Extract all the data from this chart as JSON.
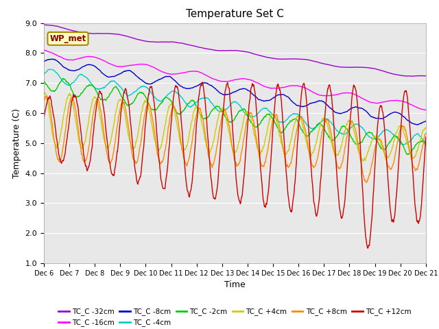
{
  "title": "Temperature Set C",
  "xlabel": "Time",
  "ylabel": "Temperature (C)",
  "ylim": [
    1.0,
    9.0
  ],
  "yticks": [
    1.0,
    2.0,
    3.0,
    4.0,
    5.0,
    6.0,
    7.0,
    8.0,
    9.0
  ],
  "n_days": 15,
  "x_tick_labels": [
    "Dec 6",
    "Dec 7",
    "Dec 8",
    "Dec 9",
    "Dec 10",
    "Dec 11",
    "Dec 12",
    "Dec 13",
    "Dec 14",
    "Dec 15",
    "Dec 16",
    "Dec 17",
    "Dec 18",
    "Dec 19",
    "Dec 20",
    "Dec 21"
  ],
  "series": [
    {
      "label": "TC_C -32cm",
      "color": "#9900CC"
    },
    {
      "label": "TC_C -16cm",
      "color": "#FF00FF"
    },
    {
      "label": "TC_C -8cm",
      "color": "#0000CC"
    },
    {
      "label": "TC_C -4cm",
      "color": "#00CCCC"
    },
    {
      "label": "TC_C -2cm",
      "color": "#00CC00"
    },
    {
      "label": "TC_C +4cm",
      "color": "#CCCC00"
    },
    {
      "label": "TC_C +8cm",
      "color": "#FF8800"
    },
    {
      "label": "TC_C +12cm",
      "color": "#CC0000"
    }
  ],
  "wp_met_label": "WP_met",
  "bg_color": "#E8E8E8",
  "linewidth": 1.0,
  "legend_ncol": 6
}
